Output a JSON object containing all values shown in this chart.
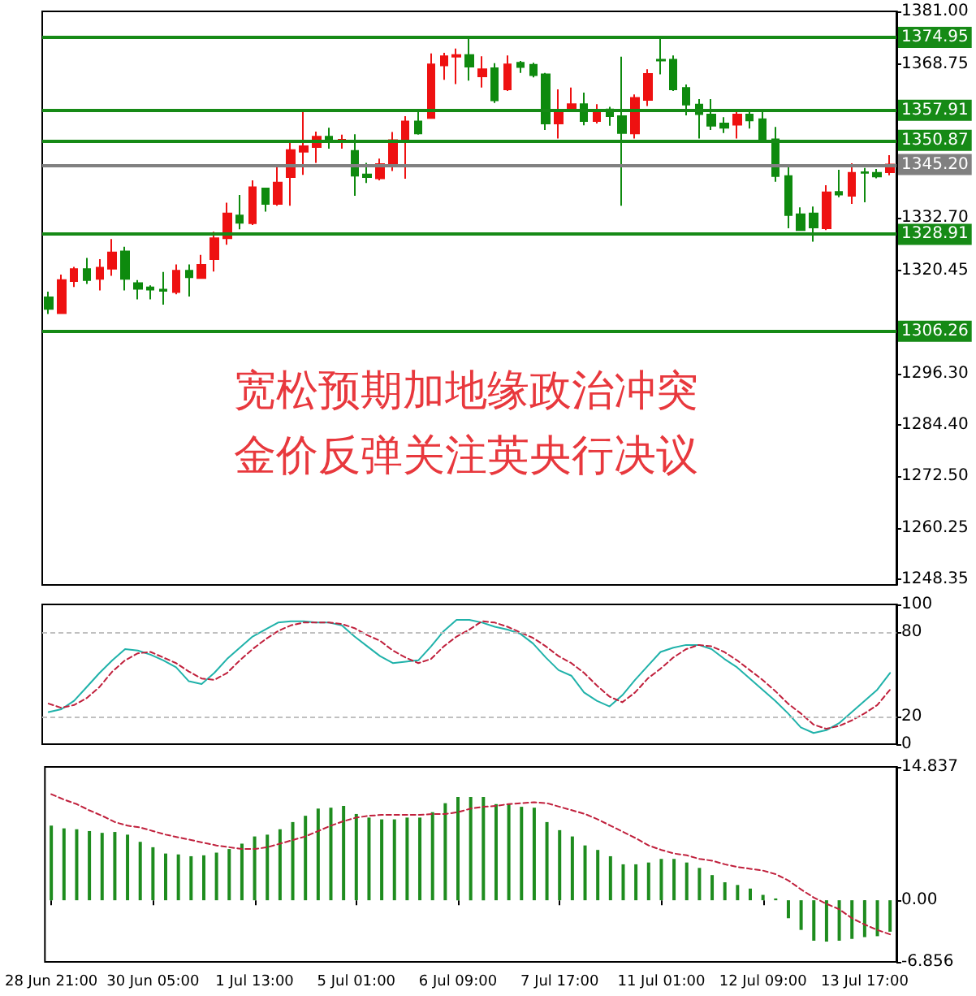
{
  "chart_data": [
    {
      "type": "candlestick",
      "categories": [
        null,
        null,
        null,
        null,
        null,
        null,
        null,
        null,
        null,
        null,
        null,
        null,
        null,
        null,
        null,
        null,
        null,
        null,
        null,
        null,
        null,
        null,
        null,
        null,
        null,
        null,
        null,
        null,
        null,
        null,
        null,
        null,
        null,
        null,
        null,
        null,
        null,
        null,
        null,
        null,
        null,
        null,
        null,
        null,
        null,
        null,
        null,
        null,
        null,
        null,
        null,
        null,
        null,
        null,
        null,
        null,
        null,
        null,
        null,
        null,
        null,
        null,
        null,
        null,
        null,
        null,
        null
      ],
      "ohlc": [
        [
          1314.2,
          1315.5,
          1310.3,
          1311.5
        ],
        [
          1310.5,
          1319.5,
          1310.3,
          1318.2
        ],
        [
          1318.0,
          1321.3,
          1316.6,
          1320.8
        ],
        [
          1320.8,
          1323.4,
          1317.3,
          1318.2
        ],
        [
          1318.5,
          1323.1,
          1315.8,
          1321.1
        ],
        [
          1320.9,
          1327.8,
          1319.2,
          1324.7
        ],
        [
          1324.9,
          1326.0,
          1315.8,
          1318.5
        ],
        [
          1317.5,
          1318.2,
          1313.7,
          1316.2
        ],
        [
          1316.5,
          1317.0,
          1313.7,
          1316.0
        ],
        [
          1316.0,
          1320.1,
          1312.5,
          1315.7
        ],
        [
          1315.4,
          1321.9,
          1314.9,
          1320.4
        ],
        [
          1320.4,
          1321.9,
          1314.4,
          1318.9
        ],
        [
          1318.7,
          1324.1,
          1318.5,
          1321.8
        ],
        [
          1323.1,
          1329.5,
          1320.2,
          1328.0
        ],
        [
          1328.0,
          1336.3,
          1326.5,
          1333.8
        ],
        [
          1333.3,
          1338.1,
          1330.1,
          1331.6
        ],
        [
          1331.5,
          1341.5,
          1331.1,
          1339.9
        ],
        [
          1339.6,
          1339.8,
          1334.2,
          1336.0
        ],
        [
          1336.0,
          1345.0,
          1335.6,
          1341.0
        ],
        [
          1342.3,
          1351.0,
          1335.6,
          1348.6
        ],
        [
          1348.2,
          1358.0,
          1342.8,
          1349.5
        ],
        [
          1349.3,
          1352.9,
          1345.6,
          1351.7
        ],
        [
          1351.7,
          1353.8,
          1348.9,
          1350.5
        ],
        [
          1350.6,
          1352.2,
          1348.9,
          1351.0
        ],
        [
          1348.4,
          1352.3,
          1337.9,
          1342.6
        ],
        [
          1342.9,
          1345.6,
          1340.9,
          1342.3
        ],
        [
          1342.0,
          1346.6,
          1341.5,
          1345.3
        ],
        [
          1345.2,
          1352.8,
          1343.7,
          1350.9
        ],
        [
          1350.5,
          1356.5,
          1341.9,
          1355.3
        ],
        [
          1355.3,
          1357.7,
          1352.2,
          1352.5
        ],
        [
          1356.1,
          1371.2,
          1355.9,
          1368.6
        ],
        [
          1368.4,
          1371.3,
          1365.0,
          1370.5
        ],
        [
          1370.4,
          1372.3,
          1364.0,
          1370.8
        ],
        [
          1370.8,
          1375.0,
          1364.8,
          1368.1
        ],
        [
          1365.8,
          1370.5,
          1363.2,
          1367.5
        ],
        [
          1367.7,
          1368.9,
          1359.6,
          1360.2
        ],
        [
          1362.8,
          1370.7,
          1362.4,
          1368.6
        ],
        [
          1369.0,
          1369.4,
          1366.6,
          1368.0
        ],
        [
          1368.5,
          1369.0,
          1365.6,
          1366.1
        ],
        [
          1366.3,
          1366.6,
          1353.3,
          1354.8
        ],
        [
          1354.8,
          1362.8,
          1351.3,
          1358.0
        ],
        [
          1358.0,
          1363.2,
          1357.5,
          1359.3
        ],
        [
          1359.3,
          1362.0,
          1354.4,
          1355.4
        ],
        [
          1355.4,
          1359.3,
          1354.8,
          1357.7
        ],
        [
          1358.1,
          1358.7,
          1354.3,
          1356.5
        ],
        [
          1356.5,
          1370.4,
          1335.6,
          1352.6
        ],
        [
          1352.5,
          1361.6,
          1351.3,
          1360.8
        ],
        [
          1360.3,
          1367.5,
          1358.9,
          1366.4
        ],
        [
          1369.7,
          1375.0,
          1366.3,
          1369.5
        ],
        [
          1369.7,
          1370.7,
          1362.4,
          1362.8
        ],
        [
          1363.1,
          1363.9,
          1356.7,
          1359.2
        ],
        [
          1359.2,
          1360.5,
          1351.3,
          1357.0
        ],
        [
          1356.9,
          1360.5,
          1353.3,
          1354.3
        ],
        [
          1354.8,
          1356.3,
          1352.6,
          1353.8
        ],
        [
          1354.5,
          1357.5,
          1351.3,
          1356.9
        ],
        [
          1356.9,
          1358.1,
          1353.6,
          1355.5
        ],
        [
          1355.8,
          1357.8,
          1350.4,
          1350.9
        ],
        [
          1351.1,
          1354.0,
          1341.2,
          1342.5
        ],
        [
          1342.5,
          1345.0,
          1330.3,
          1333.4
        ],
        [
          1333.6,
          1335.2,
          1329.9,
          1329.9
        ],
        [
          1333.8,
          1335.4,
          1327.2,
          1330.5
        ],
        [
          1330.3,
          1340.4,
          1329.9,
          1338.7
        ],
        [
          1338.8,
          1344.0,
          1337.6,
          1338.2
        ],
        [
          1337.9,
          1345.5,
          1336.0,
          1343.3
        ],
        [
          1343.4,
          1344.4,
          1336.4,
          1343.3
        ],
        [
          1343.3,
          1344.2,
          1342.0,
          1342.4
        ],
        [
          1343.4,
          1347.4,
          1342.7,
          1345.2
        ]
      ],
      "colors": [
        "#0e8a0e",
        "#ee1111",
        "#ee1111",
        "#0e8a0e",
        "#ee1111",
        "#ee1111",
        "#0e8a0e",
        "#0e8a0e",
        "#0e8a0e",
        "#0e8a0e",
        "#ee1111",
        "#0e8a0e",
        "#ee1111",
        "#ee1111",
        "#ee1111",
        "#0e8a0e",
        "#ee1111",
        "#0e8a0e",
        "#ee1111",
        "#ee1111",
        "#ee1111",
        "#ee1111",
        "#0e8a0e",
        "#ee1111",
        "#0e8a0e",
        "#0e8a0e",
        "#ee1111",
        "#ee1111",
        "#ee1111",
        "#0e8a0e",
        "#ee1111",
        "#ee1111",
        "#ee1111",
        "#0e8a0e",
        "#ee1111",
        "#0e8a0e",
        "#ee1111",
        "#0e8a0e",
        "#0e8a0e",
        "#0e8a0e",
        "#ee1111",
        "#ee1111",
        "#0e8a0e",
        "#ee1111",
        "#0e8a0e",
        "#0e8a0e",
        "#ee1111",
        "#ee1111",
        "#0e8a0e",
        "#0e8a0e",
        "#0e8a0e",
        "#0e8a0e",
        "#0e8a0e",
        "#0e8a0e",
        "#ee1111",
        "#0e8a0e",
        "#0e8a0e",
        "#0e8a0e",
        "#0e8a0e",
        "#0e8a0e",
        "#0e8a0e",
        "#ee1111",
        "#0e8a0e",
        "#ee1111",
        "#0e8a0e",
        "#0e8a0e",
        "#ee1111"
      ],
      "ylim": [
        1247,
        1381
      ],
      "yticks": [
        {
          "value": 1381,
          "label": "1381.00"
        },
        1368.75,
        {
          "value": 1332.7,
          "label": "1332.70"
        },
        1320.45,
        {
          "value": 1296.3,
          "label": "1296.30"
        },
        {
          "value": 1284.4,
          "label": "1284.40"
        },
        {
          "value": 1272.5,
          "label": "1272.50"
        },
        1260.25,
        1248.35
      ],
      "ref_lines": [
        {
          "axis": "y",
          "value": 1374.95,
          "label": "1374.95",
          "color": "#168a16"
        },
        {
          "axis": "y",
          "value": 1357.91,
          "label": "1357.91",
          "color": "#168a16"
        },
        {
          "axis": "y",
          "value": 1350.87,
          "label": "1350.87",
          "color": "#168a16"
        },
        {
          "axis": "y",
          "value": 1345.2,
          "label": "1345.20",
          "color": "#808080"
        },
        {
          "axis": "y",
          "value": 1328.91,
          "label": "1328.91",
          "color": "#168a16"
        },
        {
          "axis": "y",
          "value": 1306.26,
          "label": "1306.26",
          "color": "#168a16"
        }
      ],
      "annotations": [
        "宽松预期加地缘政治冲突",
        "金价反弹关注英央行决议"
      ]
    },
    {
      "type": "line",
      "marker": "none",
      "categories": [
        null,
        null,
        null,
        null,
        null,
        null,
        null,
        null,
        null,
        null,
        null,
        null,
        null,
        null,
        null,
        null,
        null,
        null,
        null,
        null,
        null,
        null,
        null,
        null,
        null,
        null,
        null,
        null,
        null,
        null,
        null,
        null,
        null,
        null,
        null,
        null,
        null,
        null,
        null,
        null,
        null,
        null,
        null,
        null,
        null,
        null,
        null,
        null,
        null,
        null,
        null,
        null,
        null,
        null,
        null,
        null,
        null,
        null,
        null,
        null,
        null,
        null,
        null,
        null,
        null,
        null,
        null
      ],
      "series": [
        {
          "color": "#20b2aa",
          "values": [
            23,
            25,
            31,
            41,
            51,
            60,
            68,
            67,
            64,
            60,
            55,
            45,
            43,
            51,
            61,
            69,
            77,
            82,
            87,
            88,
            88,
            87,
            87,
            85,
            77,
            70,
            63,
            58,
            59,
            60,
            70,
            81,
            89,
            89,
            87,
            84,
            82,
            79,
            72,
            62,
            53,
            49,
            37,
            31,
            27,
            35,
            46,
            56,
            66,
            69,
            71,
            71,
            68,
            61,
            55,
            47,
            39,
            31,
            22,
            12,
            8,
            10,
            15,
            23,
            31,
            39,
            51
          ]
        },
        {
          "color": "#c0203c",
          "line_style": "dashed",
          "values": [
            29,
            26,
            28,
            33,
            41,
            52,
            60,
            65,
            66,
            62,
            58,
            52,
            47,
            46,
            51,
            60,
            68,
            75,
            81,
            85,
            87,
            87,
            87,
            86,
            83,
            78,
            74,
            67,
            62,
            58,
            61,
            70,
            77,
            82,
            88,
            87,
            84,
            80,
            76,
            70,
            63,
            58,
            51,
            42,
            34,
            30,
            37,
            47,
            54,
            62,
            68,
            71,
            70,
            66,
            60,
            53,
            46,
            38,
            29,
            22,
            14,
            11,
            13,
            17,
            22,
            28,
            39
          ]
        }
      ],
      "ylim": [
        0,
        100
      ],
      "yticks": [
        0,
        20,
        80,
        100
      ],
      "ref_lines": [
        {
          "axis": "y",
          "value": 20,
          "color": "#c0c0c0",
          "line_style": "dashed"
        },
        {
          "axis": "y",
          "value": 80,
          "color": "#c0c0c0",
          "line_style": "dashed"
        }
      ]
    },
    {
      "type": "bar",
      "marker": "none",
      "categories": [
        "28 Jun 21:00",
        null,
        null,
        null,
        null,
        null,
        null,
        null,
        "30 Jun 05:00",
        null,
        null,
        null,
        null,
        null,
        null,
        null,
        "1 Jul 13:00",
        null,
        null,
        null,
        null,
        null,
        null,
        null,
        "5 Jul 01:00",
        null,
        null,
        null,
        null,
        null,
        null,
        null,
        "6 Jul 09:00",
        null,
        null,
        null,
        null,
        null,
        null,
        null,
        "7 Jul 17:00",
        null,
        null,
        null,
        null,
        null,
        null,
        null,
        "11 Jul 01:00",
        null,
        null,
        null,
        null,
        null,
        null,
        null,
        "12 Jul 09:00",
        null,
        null,
        null,
        null,
        null,
        null,
        null,
        "13 Jul 17:00",
        null,
        null
      ],
      "series": [
        {
          "color": "#1e8c1e",
          "values": [
            8.3,
            8.0,
            7.9,
            7.7,
            7.5,
            7.6,
            7.3,
            6.5,
            5.9,
            5.2,
            5.1,
            4.9,
            5.0,
            5.3,
            5.7,
            6.3,
            7.1,
            7.3,
            7.9,
            8.7,
            9.4,
            10.2,
            10.3,
            10.5,
            9.6,
            9.2,
            9.0,
            9.0,
            9.2,
            9.2,
            9.8,
            10.8,
            11.5,
            11.5,
            11.5,
            10.7,
            10.7,
            10.4,
            10.3,
            8.7,
            7.8,
            7.1,
            6.1,
            5.6,
            4.9,
            4.0,
            4.0,
            4.2,
            4.6,
            4.6,
            4.2,
            3.6,
            2.8,
            2.0,
            1.7,
            1.3,
            0.6,
            0.2,
            -2.0,
            -3.3,
            -4.5,
            -4.6,
            -4.5,
            -4.3,
            -4.1,
            -4.0,
            -3.5
          ]
        },
        {
          "type": "line",
          "color": "#c0203c",
          "line_style": "dashed",
          "values": [
            11.8,
            11.2,
            10.7,
            10.0,
            9.4,
            8.7,
            8.3,
            8.1,
            7.7,
            7.3,
            7.0,
            6.7,
            6.4,
            6.1,
            5.9,
            5.7,
            5.7,
            5.9,
            6.3,
            6.7,
            7.1,
            7.7,
            8.3,
            8.8,
            9.2,
            9.4,
            9.5,
            9.5,
            9.5,
            9.5,
            9.6,
            9.6,
            9.8,
            10.2,
            10.4,
            10.5,
            10.7,
            10.8,
            10.9,
            10.8,
            10.4,
            10.0,
            9.6,
            9.0,
            8.3,
            7.6,
            6.9,
            6.1,
            5.6,
            5.2,
            5.0,
            4.6,
            4.4,
            4.0,
            3.7,
            3.5,
            3.3,
            2.9,
            2.2,
            1.2,
            0.3,
            -0.4,
            -1.0,
            -2.0,
            -2.7,
            -3.3,
            -3.8
          ]
        }
      ],
      "ylim": [
        -6.856,
        14.837
      ],
      "yticks": [
        -6.856,
        {
          "value": 0,
          "label": "0.00"
        },
        14.837
      ]
    }
  ]
}
